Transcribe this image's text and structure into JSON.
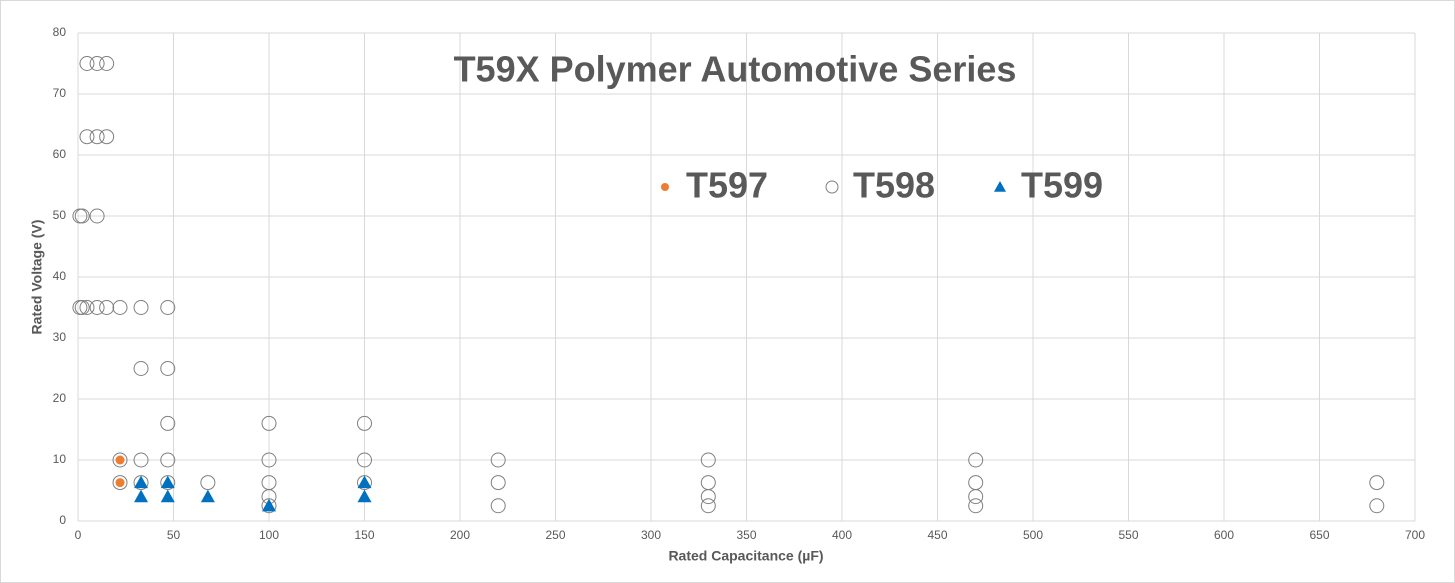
{
  "chart_data": {
    "type": "scatter",
    "title": "T59X Polymer Automotive Series",
    "x_label": "Rated Capacitance (µF)",
    "y_label": "Rated Voltage  (V)",
    "xlim": [
      0,
      700
    ],
    "xticks": [
      0,
      50,
      100,
      150,
      200,
      250,
      300,
      350,
      400,
      450,
      500,
      550,
      600,
      650,
      700
    ],
    "ylim": [
      0,
      80
    ],
    "yticks": [
      0,
      10,
      20,
      30,
      40,
      50,
      60,
      70,
      80
    ],
    "grid": true,
    "legend": "top-right",
    "series": [
      {
        "name": "T597",
        "color": "#ed7d31",
        "marker": "circle",
        "x": [
          22,
          22
        ],
        "y": [
          10,
          6.3
        ]
      },
      {
        "name": "T598",
        "color": "#7f7f7f",
        "marker": "open-circle",
        "x": [
          4.7,
          10,
          15,
          4.7,
          10,
          15,
          1,
          2.2,
          10,
          1,
          2.2,
          4.7,
          10,
          15,
          22,
          33,
          47,
          33,
          47,
          47,
          100,
          150,
          22,
          33,
          47,
          100,
          150,
          220,
          330,
          470,
          22,
          33,
          47,
          68,
          100,
          150,
          220,
          330,
          470,
          680,
          100,
          330,
          470,
          100,
          220,
          330,
          470,
          680
        ],
        "y": [
          75,
          75,
          75,
          63,
          63,
          63,
          50,
          50,
          50,
          35,
          35,
          35,
          35,
          35,
          35,
          35,
          35,
          25,
          25,
          16,
          16,
          16,
          10,
          10,
          10,
          10,
          10,
          10,
          10,
          10,
          6.3,
          6.3,
          6.3,
          6.3,
          6.3,
          6.3,
          6.3,
          6.3,
          6.3,
          6.3,
          4,
          4,
          4,
          2.5,
          2.5,
          2.5,
          2.5,
          2.5
        ]
      },
      {
        "name": "T599",
        "color": "#0070c0",
        "marker": "triangle",
        "x": [
          33,
          33,
          47,
          47,
          68,
          100,
          150,
          150
        ],
        "y": [
          4,
          6.3,
          4,
          6.3,
          4,
          2.5,
          4,
          6.3
        ]
      }
    ]
  }
}
